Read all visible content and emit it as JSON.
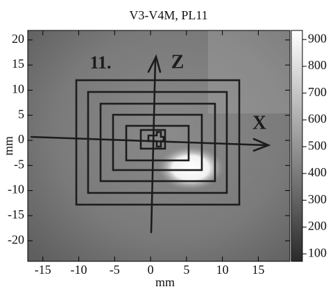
{
  "chart_data": {
    "type": "heatmap",
    "title": "V3-V4M, PL11",
    "xlabel": "mm",
    "ylabel": "mm",
    "xlim": [
      -17.1,
      19.4
    ],
    "ylim": [
      -24.1,
      21.9
    ],
    "xticks": [
      -15,
      -10,
      -5,
      0,
      5,
      10,
      15
    ],
    "yticks": [
      -20,
      -15,
      -10,
      -5,
      0,
      5,
      10,
      15,
      20
    ],
    "annotations": [
      "11.",
      "Z",
      "X"
    ],
    "colorbar": {
      "lim": [
        72,
        934
      ],
      "ticks": [
        100,
        200,
        300,
        400,
        500,
        600,
        700,
        800,
        900
      ]
    }
  }
}
